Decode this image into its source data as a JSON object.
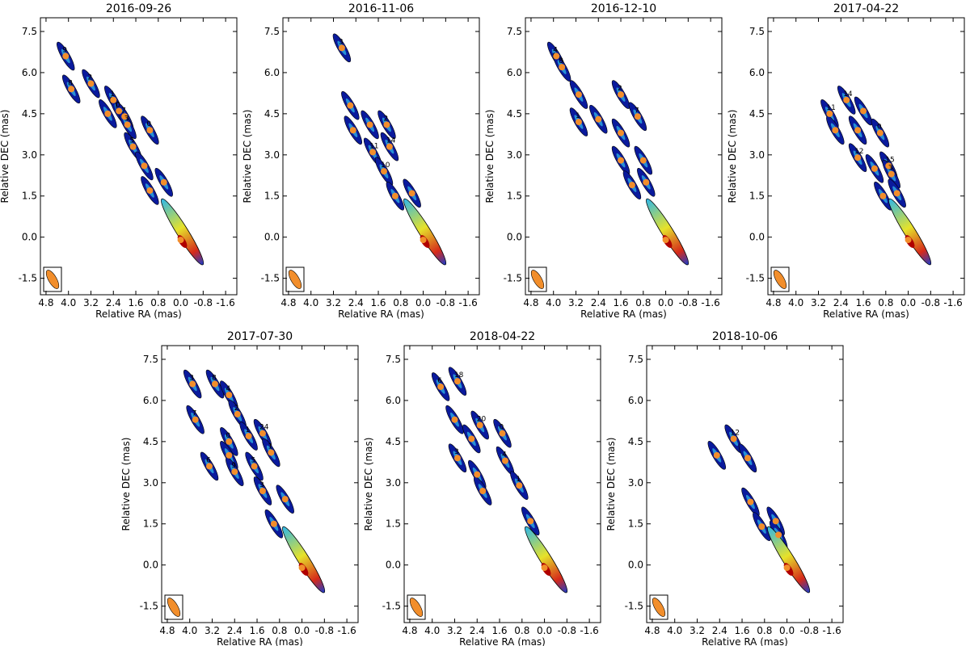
{
  "figure": {
    "title": "",
    "colors": {
      "marker": "#f28e2b",
      "beam_fill": "#f28e2b",
      "outline": "#000000",
      "jet_low": "#0a1a9c",
      "jet_mid": "#2fb7e8",
      "jet_high": "#e6e22a",
      "jet_peak": "#b00000"
    }
  },
  "chart_data": [
    {
      "type": "scatter",
      "title": "2016-09-26",
      "xlabel": "Relative RA (mas)",
      "ylabel": "Relative DEC (mas)",
      "xlim": [
        5.0,
        -2.0
      ],
      "ylim": [
        -2.1,
        8.0
      ],
      "xticks": [
        "4.8",
        "4.0",
        "3.2",
        "2.4",
        "1.6",
        "0.8",
        "0.0",
        "-0.8",
        "-1.6"
      ],
      "yticks": [
        "-1.5",
        "0.0",
        "1.5",
        "3.0",
        "4.5",
        "6.0",
        "7.5"
      ],
      "components": [
        {
          "label": "9",
          "ra": 4.1,
          "dec": 6.6
        },
        {
          "label": "8",
          "ra": 3.9,
          "dec": 5.4
        },
        {
          "label": "2",
          "ra": 3.2,
          "dec": 5.6
        },
        {
          "label": "",
          "ra": 2.6,
          "dec": 4.5
        },
        {
          "label": "1",
          "ra": 2.4,
          "dec": 5.0
        },
        {
          "label": "0",
          "ra": 2.2,
          "dec": 4.6
        },
        {
          "label": "7",
          "ra": 2.0,
          "dec": 4.4
        },
        {
          "label": "3",
          "ra": 1.9,
          "dec": 4.1
        },
        {
          "label": "0",
          "ra": 1.1,
          "dec": 3.9
        },
        {
          "label": "5",
          "ra": 1.7,
          "dec": 3.3
        },
        {
          "label": "",
          "ra": 1.3,
          "dec": 2.6
        },
        {
          "label": "",
          "ra": 0.6,
          "dec": 2.0
        },
        {
          "label": "",
          "ra": 1.1,
          "dec": 1.7
        },
        {
          "label": "",
          "ra": 0.0,
          "dec": -0.1
        }
      ]
    },
    {
      "type": "scatter",
      "title": "2016-11-06",
      "xlabel": "Relative RA (mas)",
      "ylabel": "Relative DEC (mas)",
      "xlim": [
        5.0,
        -2.0
      ],
      "ylim": [
        -2.1,
        8.0
      ],
      "xticks": [
        "4.8",
        "4.0",
        "3.2",
        "2.4",
        "1.6",
        "0.8",
        "0.0",
        "-0.8",
        "-1.6"
      ],
      "yticks": [
        "-1.5",
        "0.0",
        "1.5",
        "3.0",
        "4.5",
        "6.0",
        "7.5"
      ],
      "components": [
        {
          "label": "3",
          "ra": 2.9,
          "dec": 6.9
        },
        {
          "label": "",
          "ra": 2.6,
          "dec": 4.8
        },
        {
          "label": "",
          "ra": 2.5,
          "dec": 3.9
        },
        {
          "label": "",
          "ra": 1.9,
          "dec": 4.1
        },
        {
          "label": "2",
          "ra": 1.3,
          "dec": 4.1
        },
        {
          "label": "11",
          "ra": 1.8,
          "dec": 3.1
        },
        {
          "label": "14",
          "ra": 1.2,
          "dec": 3.3
        },
        {
          "label": "10",
          "ra": 1.4,
          "dec": 2.4
        },
        {
          "label": "",
          "ra": 1.0,
          "dec": 1.5
        },
        {
          "label": "",
          "ra": 0.4,
          "dec": 1.6
        },
        {
          "label": "",
          "ra": 0.0,
          "dec": -0.1
        }
      ]
    },
    {
      "type": "scatter",
      "title": "2016-12-10",
      "xlabel": "Relative RA (mas)",
      "ylabel": "Relative DEC (mas)",
      "xlim": [
        5.0,
        -2.0
      ],
      "ylim": [
        -2.1,
        8.0
      ],
      "xticks": [
        "4.8",
        "4.0",
        "3.2",
        "2.4",
        "1.6",
        "0.8",
        "0.0",
        "-0.8",
        "-1.6"
      ],
      "yticks": [
        "-1.5",
        "0.0",
        "1.5",
        "3.0",
        "4.5",
        "6.0",
        "7.5"
      ],
      "components": [
        {
          "label": "4",
          "ra": 3.9,
          "dec": 6.6
        },
        {
          "label": "8",
          "ra": 3.7,
          "dec": 6.2
        },
        {
          "label": "",
          "ra": 3.1,
          "dec": 5.2
        },
        {
          "label": "1",
          "ra": 3.1,
          "dec": 4.2
        },
        {
          "label": "",
          "ra": 2.4,
          "dec": 4.3
        },
        {
          "label": "2",
          "ra": 1.6,
          "dec": 5.2
        },
        {
          "label": "7",
          "ra": 1.0,
          "dec": 4.4
        },
        {
          "label": "",
          "ra": 1.6,
          "dec": 3.8
        },
        {
          "label": "",
          "ra": 1.6,
          "dec": 2.8
        },
        {
          "label": "",
          "ra": 0.8,
          "dec": 2.8
        },
        {
          "label": "",
          "ra": 1.2,
          "dec": 1.9
        },
        {
          "label": "",
          "ra": 0.7,
          "dec": 2.0
        },
        {
          "label": "",
          "ra": 0.0,
          "dec": -0.1
        }
      ]
    },
    {
      "type": "scatter",
      "title": "2017-04-22",
      "xlabel": "Relative RA (mas)",
      "ylabel": "Relative DEC (mas)",
      "xlim": [
        5.0,
        -2.0
      ],
      "ylim": [
        -2.1,
        8.0
      ],
      "xticks": [
        "4.8",
        "4.0",
        "3.2",
        "2.4",
        "1.6",
        "0.8",
        "0.0",
        "-0.8",
        "-1.6"
      ],
      "yticks": [
        "-1.5",
        "0.0",
        "1.5",
        "3.0",
        "4.5",
        "6.0",
        "7.5"
      ],
      "components": [
        {
          "label": "11",
          "ra": 2.8,
          "dec": 4.5
        },
        {
          "label": "14",
          "ra": 2.2,
          "dec": 5.0
        },
        {
          "label": "",
          "ra": 2.6,
          "dec": 3.9
        },
        {
          "label": "",
          "ra": 1.6,
          "dec": 4.6
        },
        {
          "label": "",
          "ra": 1.8,
          "dec": 3.9
        },
        {
          "label": "0",
          "ra": 1.0,
          "dec": 3.8
        },
        {
          "label": "12",
          "ra": 1.8,
          "dec": 2.9
        },
        {
          "label": "",
          "ra": 1.2,
          "dec": 2.5
        },
        {
          "label": "15",
          "ra": 0.7,
          "dec": 2.6
        },
        {
          "label": "3",
          "ra": 0.6,
          "dec": 2.3
        },
        {
          "label": "",
          "ra": 0.9,
          "dec": 1.5
        },
        {
          "label": "",
          "ra": 0.4,
          "dec": 1.6
        },
        {
          "label": "",
          "ra": 0.0,
          "dec": -0.1
        }
      ]
    },
    {
      "type": "scatter",
      "title": "2017-07-30",
      "xlabel": "Relative RA (mas)",
      "ylabel": "Relative DEC (mas)",
      "xlim": [
        5.0,
        -2.0
      ],
      "ylim": [
        -2.1,
        8.0
      ],
      "xticks": [
        "4.8",
        "4.0",
        "3.2",
        "2.4",
        "1.6",
        "0.8",
        "0.0",
        "-0.8",
        "-1.6"
      ],
      "yticks": [
        "-1.5",
        "0.0",
        "1.5",
        "3.0",
        "4.5",
        "6.0",
        "7.5"
      ],
      "components": [
        {
          "label": "3",
          "ra": 3.9,
          "dec": 6.6
        },
        {
          "label": "8",
          "ra": 3.1,
          "dec": 6.6
        },
        {
          "label": "4",
          "ra": 2.6,
          "dec": 6.2
        },
        {
          "label": "2",
          "ra": 2.3,
          "dec": 5.5
        },
        {
          "label": "7",
          "ra": 3.8,
          "dec": 5.3
        },
        {
          "label": "1",
          "ra": 1.9,
          "dec": 4.7
        },
        {
          "label": "24",
          "ra": 1.4,
          "dec": 4.8
        },
        {
          "label": "0",
          "ra": 2.6,
          "dec": 4.5
        },
        {
          "label": "",
          "ra": 2.6,
          "dec": 4.0
        },
        {
          "label": "1",
          "ra": 1.1,
          "dec": 4.1
        },
        {
          "label": "6",
          "ra": 3.3,
          "dec": 3.6
        },
        {
          "label": "9",
          "ra": 2.4,
          "dec": 3.4
        },
        {
          "label": "5",
          "ra": 1.7,
          "dec": 3.6
        },
        {
          "label": "3",
          "ra": 1.4,
          "dec": 2.7
        },
        {
          "label": "",
          "ra": 0.6,
          "dec": 2.4
        },
        {
          "label": "",
          "ra": 1.0,
          "dec": 1.5
        },
        {
          "label": "",
          "ra": 0.0,
          "dec": -0.1
        }
      ]
    },
    {
      "type": "scatter",
      "title": "2018-04-22",
      "xlabel": "Relative RA (mas)",
      "ylabel": "Relative DEC (mas)",
      "xlim": [
        5.0,
        -2.0
      ],
      "ylim": [
        -2.1,
        8.0
      ],
      "xticks": [
        "4.8",
        "4.0",
        "3.2",
        "2.4",
        "1.6",
        "0.8",
        "0.0",
        "-0.8",
        "-1.6"
      ],
      "yticks": [
        "-1.5",
        "0.0",
        "1.5",
        "3.0",
        "4.5",
        "6.0",
        "7.5"
      ],
      "components": [
        {
          "label": "6",
          "ra": 3.7,
          "dec": 6.5
        },
        {
          "label": "18",
          "ra": 3.1,
          "dec": 6.7
        },
        {
          "label": "",
          "ra": 3.2,
          "dec": 5.3
        },
        {
          "label": "",
          "ra": 2.6,
          "dec": 4.6
        },
        {
          "label": "20",
          "ra": 2.3,
          "dec": 5.1
        },
        {
          "label": "0",
          "ra": 1.5,
          "dec": 4.8
        },
        {
          "label": "4",
          "ra": 1.4,
          "dec": 3.8
        },
        {
          "label": "3",
          "ra": 3.1,
          "dec": 3.9
        },
        {
          "label": "",
          "ra": 2.4,
          "dec": 3.3
        },
        {
          "label": "",
          "ra": 2.2,
          "dec": 2.7
        },
        {
          "label": "1",
          "ra": 0.9,
          "dec": 2.9
        },
        {
          "label": "",
          "ra": 0.5,
          "dec": 1.6
        },
        {
          "label": "",
          "ra": 0.0,
          "dec": -0.1
        }
      ]
    },
    {
      "type": "scatter",
      "title": "2018-10-06",
      "xlabel": "Relative RA (mas)",
      "ylabel": "Relative DEC (mas)",
      "xlim": [
        5.0,
        -2.0
      ],
      "ylim": [
        -2.1,
        8.0
      ],
      "xticks": [
        "4.8",
        "4.0",
        "3.2",
        "2.4",
        "1.6",
        "0.8",
        "0.0",
        "-0.8",
        "-1.6"
      ],
      "yticks": [
        "-1.5",
        "0.0",
        "1.5",
        "3.0",
        "4.5",
        "6.0",
        "7.5"
      ],
      "components": [
        {
          "label": "12",
          "ra": 1.9,
          "dec": 4.6
        },
        {
          "label": "",
          "ra": 2.5,
          "dec": 4.0
        },
        {
          "label": "",
          "ra": 1.4,
          "dec": 3.9
        },
        {
          "label": "",
          "ra": 1.3,
          "dec": 2.3
        },
        {
          "label": "",
          "ra": 0.9,
          "dec": 1.4
        },
        {
          "label": "",
          "ra": 0.4,
          "dec": 1.6
        },
        {
          "label": "",
          "ra": 0.3,
          "dec": 1.1
        },
        {
          "label": "",
          "ra": 0.0,
          "dec": -0.1
        }
      ]
    }
  ]
}
